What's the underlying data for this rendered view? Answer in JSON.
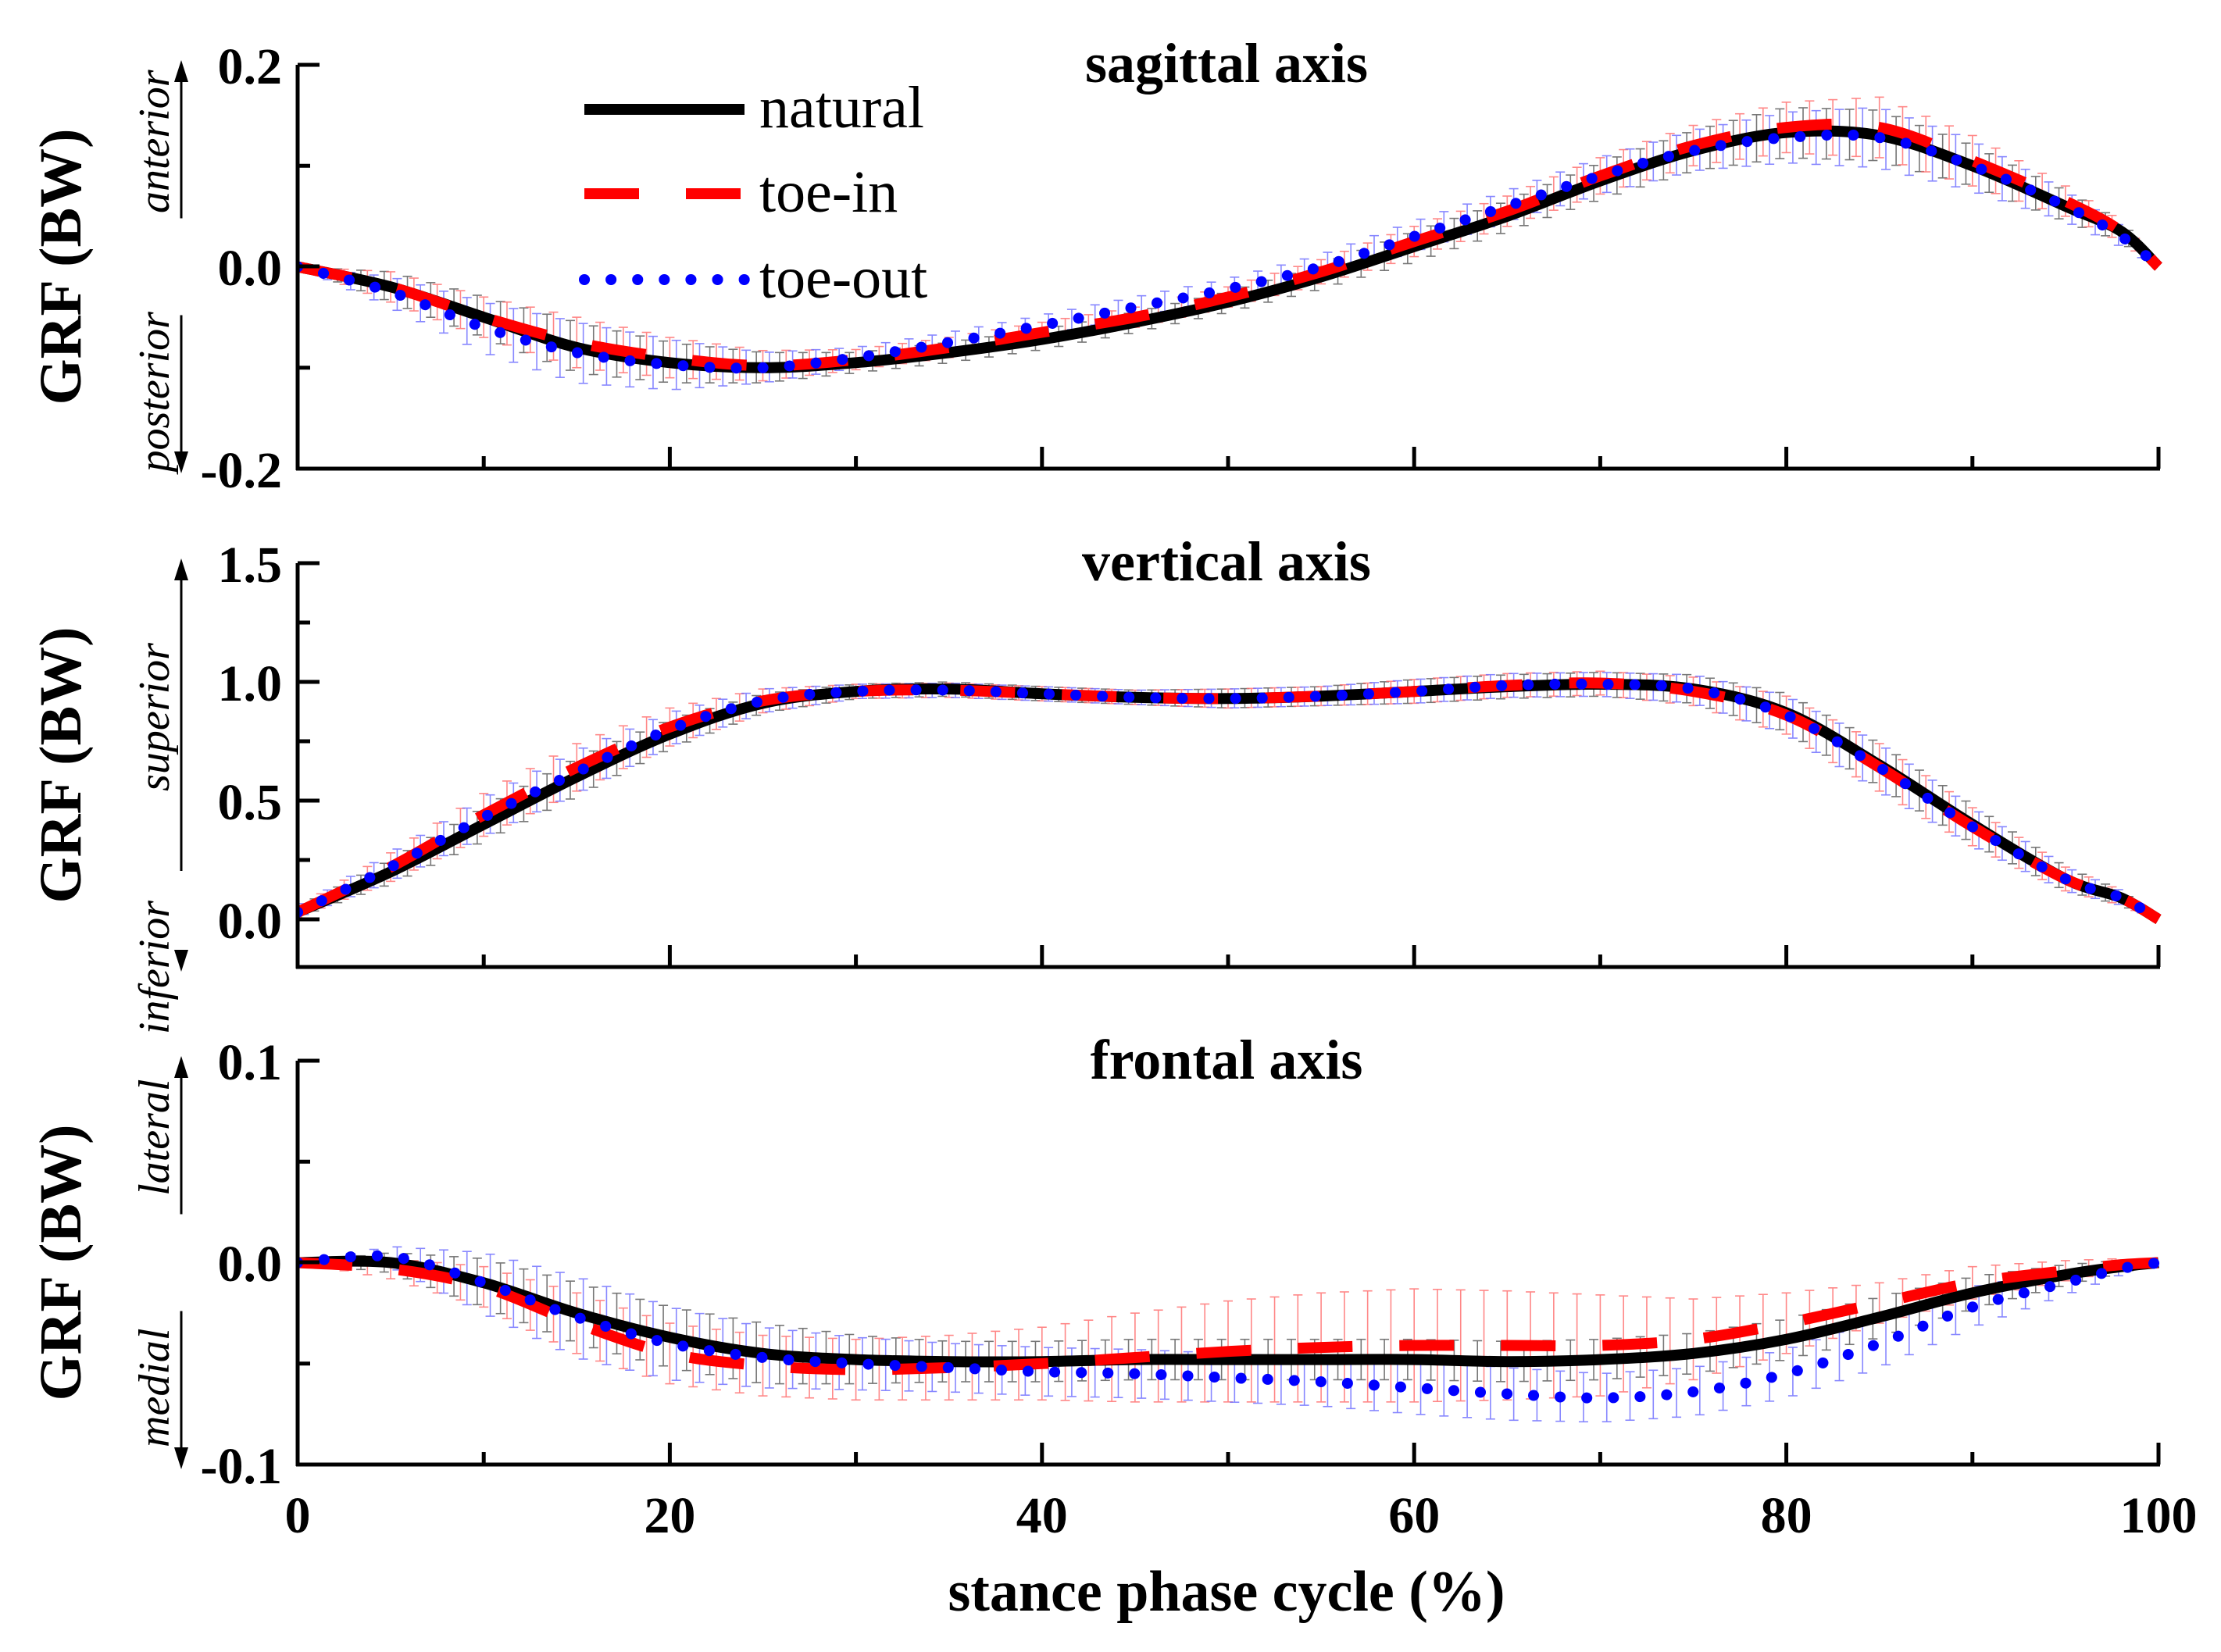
{
  "figure": {
    "xlabel": "stance phase cycle (%)",
    "ylabel": "GRF (BW)",
    "x_ticks": [
      "0",
      "20",
      "40",
      "60",
      "80",
      "100"
    ]
  },
  "legend": [
    {
      "label": "natural",
      "color": "#000000",
      "style": "solid"
    },
    {
      "label": "toe-in",
      "color": "#ff0000",
      "style": "dashed"
    },
    {
      "label": "toe-out",
      "color": "#0000ff",
      "style": "dotted"
    }
  ],
  "chart_data": [
    {
      "type": "line",
      "title": "sagittal axis",
      "xlabel": "stance phase cycle (%)",
      "ylabel": "GRF (BW)",
      "direction_up": "anterior",
      "direction_down": "posterior",
      "xlim": [
        0,
        100
      ],
      "ylim": [
        -0.2,
        0.2
      ],
      "y_ticks": [
        "0.2",
        "0.0",
        "-0.2"
      ],
      "x": [
        0,
        5,
        10,
        15,
        20,
        25,
        30,
        35,
        40,
        45,
        50,
        55,
        60,
        65,
        70,
        75,
        80,
        85,
        90,
        95,
        98,
        100
      ],
      "series": [
        {
          "name": "natural",
          "color": "#000000",
          "values": [
            0.0,
            -0.02,
            -0.05,
            -0.08,
            -0.095,
            -0.1,
            -0.095,
            -0.085,
            -0.072,
            -0.055,
            -0.035,
            -0.01,
            0.02,
            0.05,
            0.085,
            0.115,
            0.133,
            0.13,
            0.1,
            0.06,
            0.035,
            0.0
          ],
          "sd": [
            0.0,
            0.015,
            0.02,
            0.025,
            0.02,
            0.015,
            0.01,
            0.01,
            0.01,
            0.01,
            0.01,
            0.012,
            0.015,
            0.015,
            0.018,
            0.02,
            0.025,
            0.025,
            0.02,
            0.015,
            0.01,
            0.0
          ]
        },
        {
          "name": "toe-in",
          "color": "#ff0000",
          "values": [
            0.0,
            -0.02,
            -0.05,
            -0.075,
            -0.09,
            -0.098,
            -0.092,
            -0.08,
            -0.065,
            -0.05,
            -0.03,
            -0.005,
            0.025,
            0.055,
            0.09,
            0.12,
            0.138,
            0.138,
            0.105,
            0.065,
            0.035,
            0.0
          ],
          "sd": [
            0.0,
            0.015,
            0.02,
            0.025,
            0.02,
            0.015,
            0.01,
            0.01,
            0.01,
            0.01,
            0.01,
            0.012,
            0.015,
            0.015,
            0.018,
            0.02,
            0.025,
            0.03,
            0.025,
            0.015,
            0.01,
            0.0
          ]
        },
        {
          "name": "toe-out",
          "color": "#0000ff",
          "values": [
            0.0,
            -0.025,
            -0.06,
            -0.085,
            -0.097,
            -0.1,
            -0.09,
            -0.075,
            -0.058,
            -0.04,
            -0.022,
            0.0,
            0.03,
            0.06,
            0.09,
            0.115,
            0.128,
            0.128,
            0.1,
            0.06,
            0.03,
            0.0
          ],
          "sd": [
            0.0,
            0.015,
            0.025,
            0.03,
            0.025,
            0.015,
            0.01,
            0.01,
            0.01,
            0.01,
            0.01,
            0.012,
            0.015,
            0.015,
            0.018,
            0.02,
            0.025,
            0.03,
            0.025,
            0.015,
            0.01,
            0.0
          ]
        }
      ]
    },
    {
      "type": "line",
      "title": "vertical axis",
      "xlabel": "stance phase cycle (%)",
      "ylabel": "GRF (BW)",
      "direction_up": "superior",
      "direction_down": "inferior",
      "xlim": [
        0,
        100
      ],
      "ylim": [
        -0.2,
        1.5
      ],
      "y_ticks": [
        "1.5",
        "1.0",
        "0.5",
        "0.0"
      ],
      "x": [
        0,
        5,
        10,
        15,
        20,
        25,
        30,
        35,
        40,
        45,
        50,
        55,
        60,
        65,
        70,
        75,
        80,
        85,
        90,
        95,
        98,
        100
      ],
      "series": [
        {
          "name": "natural",
          "color": "#000000",
          "values": [
            0.03,
            0.2,
            0.4,
            0.6,
            0.78,
            0.91,
            0.96,
            0.97,
            0.95,
            0.935,
            0.93,
            0.94,
            0.96,
            0.98,
            0.99,
            0.97,
            0.87,
            0.65,
            0.4,
            0.17,
            0.09,
            0.0
          ],
          "sd": [
            0.02,
            0.05,
            0.07,
            0.08,
            0.06,
            0.04,
            0.03,
            0.03,
            0.03,
            0.03,
            0.04,
            0.04,
            0.05,
            0.05,
            0.05,
            0.06,
            0.08,
            0.09,
            0.08,
            0.05,
            0.03,
            0.0
          ]
        },
        {
          "name": "toe-in",
          "color": "#ff0000",
          "values": [
            0.03,
            0.22,
            0.44,
            0.64,
            0.81,
            0.92,
            0.96,
            0.965,
            0.95,
            0.935,
            0.93,
            0.94,
            0.96,
            0.985,
            0.995,
            0.96,
            0.86,
            0.64,
            0.39,
            0.17,
            0.09,
            0.0
          ],
          "sd": [
            0.02,
            0.06,
            0.09,
            0.1,
            0.08,
            0.05,
            0.03,
            0.03,
            0.03,
            0.03,
            0.04,
            0.04,
            0.05,
            0.05,
            0.05,
            0.06,
            0.08,
            0.1,
            0.08,
            0.05,
            0.03,
            0.0
          ]
        },
        {
          "name": "toe-out",
          "color": "#0000ff",
          "values": [
            0.03,
            0.22,
            0.43,
            0.62,
            0.8,
            0.92,
            0.96,
            0.965,
            0.95,
            0.935,
            0.93,
            0.94,
            0.96,
            0.985,
            0.99,
            0.97,
            0.86,
            0.64,
            0.39,
            0.17,
            0.09,
            0.0
          ],
          "sd": [
            0.02,
            0.06,
            0.08,
            0.09,
            0.07,
            0.05,
            0.03,
            0.03,
            0.03,
            0.03,
            0.04,
            0.04,
            0.05,
            0.05,
            0.05,
            0.06,
            0.08,
            0.1,
            0.08,
            0.05,
            0.03,
            0.0
          ]
        }
      ]
    },
    {
      "type": "line",
      "title": "frontal axis",
      "xlabel": "stance phase cycle (%)",
      "ylabel": "GRF (BW)",
      "direction_up": "lateral",
      "direction_down": "medial",
      "xlim": [
        0,
        100
      ],
      "ylim": [
        -0.1,
        0.1
      ],
      "y_ticks": [
        "0.1",
        "0.0",
        "-0.1"
      ],
      "x": [
        0,
        5,
        10,
        15,
        20,
        25,
        30,
        35,
        40,
        45,
        50,
        55,
        60,
        65,
        70,
        75,
        80,
        85,
        90,
        95,
        98,
        100
      ],
      "series": [
        {
          "name": "natural",
          "color": "#000000",
          "values": [
            0.0,
            0.0,
            -0.01,
            -0.025,
            -0.037,
            -0.045,
            -0.048,
            -0.049,
            -0.049,
            -0.048,
            -0.048,
            -0.048,
            -0.048,
            -0.049,
            -0.048,
            -0.045,
            -0.038,
            -0.027,
            -0.015,
            -0.006,
            -0.002,
            0.0
          ],
          "sd": [
            0.0,
            0.005,
            0.012,
            0.015,
            0.015,
            0.015,
            0.012,
            0.01,
            0.01,
            0.01,
            0.01,
            0.01,
            0.01,
            0.01,
            0.01,
            0.01,
            0.01,
            0.01,
            0.008,
            0.005,
            0.003,
            0.0
          ]
        },
        {
          "name": "toe-in",
          "color": "#ff0000",
          "values": [
            0.0,
            -0.003,
            -0.012,
            -0.03,
            -0.045,
            -0.051,
            -0.053,
            -0.052,
            -0.05,
            -0.047,
            -0.044,
            -0.042,
            -0.041,
            -0.041,
            -0.041,
            -0.038,
            -0.03,
            -0.02,
            -0.01,
            -0.004,
            -0.001,
            0.0
          ],
          "sd": [
            0.0,
            0.005,
            0.01,
            0.015,
            0.015,
            0.015,
            0.015,
            0.016,
            0.018,
            0.022,
            0.025,
            0.027,
            0.028,
            0.027,
            0.025,
            0.02,
            0.015,
            0.01,
            0.008,
            0.005,
            0.003,
            0.0
          ]
        },
        {
          "name": "toe-out",
          "color": "#0000ff",
          "values": [
            0.0,
            0.003,
            -0.01,
            -0.027,
            -0.04,
            -0.047,
            -0.05,
            -0.052,
            -0.054,
            -0.055,
            -0.057,
            -0.059,
            -0.062,
            -0.065,
            -0.067,
            -0.064,
            -0.055,
            -0.04,
            -0.022,
            -0.01,
            -0.003,
            0.0
          ],
          "sd": [
            0.0,
            0.005,
            0.015,
            0.02,
            0.018,
            0.015,
            0.013,
            0.012,
            0.012,
            0.012,
            0.012,
            0.012,
            0.013,
            0.013,
            0.012,
            0.012,
            0.012,
            0.012,
            0.01,
            0.006,
            0.003,
            0.0
          ]
        }
      ]
    }
  ]
}
